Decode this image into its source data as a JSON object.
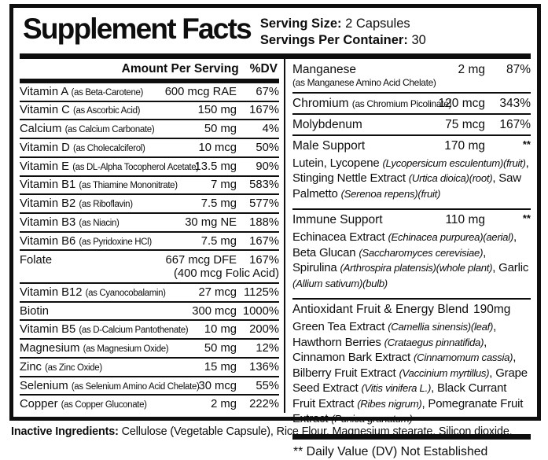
{
  "colors": {
    "ink": "#0e0e0e",
    "background": "#ffffff"
  },
  "title": "Supplement Facts",
  "serving": {
    "size_label": "Serving Size:",
    "size_value": "2 Capsules",
    "container_label": "Servings Per Container:",
    "container_value": "30"
  },
  "left_table": {
    "header": {
      "amount": "Amount Per Serving",
      "dv": "%DV"
    },
    "rows": [
      {
        "name": "Vitamin A",
        "form": "(as Beta-Carotene)",
        "amount": "600 mcg RAE",
        "dv": "67%"
      },
      {
        "name": "Vitamin C",
        "form": "(as Ascorbic Acid)",
        "amount": "150 mg",
        "dv": "167%"
      },
      {
        "name": "Calcium",
        "form": "(as Calcium Carbonate)",
        "amount": "50 mg",
        "dv": "4%"
      },
      {
        "name": "Vitamin D",
        "form": "(as Cholecalciferol)",
        "amount": "10 mcg",
        "dv": "50%"
      },
      {
        "name": "Vitamin E",
        "form": "(as DL-Alpha Tocopherol Acetate)",
        "amount": "13.5 mg",
        "dv": "90%"
      },
      {
        "name": "Vitamin B1",
        "form": "(as Thiamine Mononitrate)",
        "amount": "7 mg",
        "dv": "583%"
      },
      {
        "name": "Vitamin B2",
        "form": "(as Riboflavin)",
        "amount": "7.5 mg",
        "dv": "577%"
      },
      {
        "name": "Vitamin B3",
        "form": "(as Niacin)",
        "amount": "30 mg NE",
        "dv": "188%"
      },
      {
        "name": "Vitamin B6",
        "form": "(as Pyridoxine HCl)",
        "amount": "7.5 mg",
        "dv": "167%"
      },
      {
        "name": "Folate",
        "form": "",
        "amount": "667 mcg DFE",
        "dv": "167%",
        "amount2": "(400 mcg Folic Acid)"
      },
      {
        "name": "Vitamin B12",
        "form": "(as Cyanocobalamin)",
        "amount": "27 mcg",
        "dv": "1125%"
      },
      {
        "name": "Biotin",
        "form": "",
        "amount": "300 mcg",
        "dv": "1000%"
      },
      {
        "name": "Vitamin B5",
        "form": "(as D-Calcium Pantothenate)",
        "amount": "10 mg",
        "dv": "200%"
      },
      {
        "name": "Magnesium",
        "form": "(as Magnesium Oxide)",
        "amount": "50 mg",
        "dv": "12%"
      },
      {
        "name": "Zinc",
        "form": "(as Zinc Oxide)",
        "amount": "15 mg",
        "dv": "136%"
      },
      {
        "name": "Selenium",
        "form": "(as Selenium Amino Acid Chelate)",
        "amount": "30 mcg",
        "dv": "55%"
      },
      {
        "name": "Copper",
        "form": "(as Copper Gluconate)",
        "amount": "2 mg",
        "dv": "222%"
      }
    ]
  },
  "right_table": {
    "rows": [
      {
        "name": "Manganese",
        "form": "(as Manganese Amino Acid Chelate)",
        "form_below": true,
        "amount": "2 mg",
        "dv": "87%"
      },
      {
        "name": "Chromium",
        "form": "(as Chromium Picolinate)",
        "form_below": false,
        "amount": "120 mcg",
        "dv": "343%"
      },
      {
        "name": "Molybdenum",
        "form": "",
        "form_below": false,
        "amount": "75 mcg",
        "dv": "167%"
      }
    ],
    "sections": [
      {
        "name": "Male Support",
        "amount": "170 mg",
        "dv": "**",
        "amount_inline": false,
        "ingredients": [
          {
            "text": "Lutein, Lycopene ",
            "italic": false
          },
          {
            "text": "(Lycopersicum esculentum)(fruit)",
            "italic": true
          },
          {
            "text": ", Stinging Nettle Extract ",
            "italic": false
          },
          {
            "text": "(Urtica dioica)(root)",
            "italic": true
          },
          {
            "text": ", Saw Palmetto ",
            "italic": false
          },
          {
            "text": "(Serenoa repens)(fruit)",
            "italic": true
          }
        ]
      },
      {
        "name": "Immune Support",
        "amount": "110 mg",
        "dv": "**",
        "amount_inline": false,
        "ingredients": [
          {
            "text": "Echinacea Extract ",
            "italic": false
          },
          {
            "text": "(Echinacea purpurea)(aerial)",
            "italic": true
          },
          {
            "text": ", Beta Glucan ",
            "italic": false
          },
          {
            "text": "(Saccharomyces cerevisiae)",
            "italic": true
          },
          {
            "text": ", Spirulina ",
            "italic": false
          },
          {
            "text": "(Arthrospira platensis)(whole plant)",
            "italic": true
          },
          {
            "text": ", Garlic ",
            "italic": false
          },
          {
            "text": "(Allium sativum)(bulb)",
            "italic": true
          }
        ]
      },
      {
        "name": "Antioxidant Fruit & Energy Blend",
        "amount": "190mg",
        "dv": "**",
        "amount_inline": true,
        "ingredients": [
          {
            "text": "Green Tea Extract ",
            "italic": false
          },
          {
            "text": "(Camellia sinensis)(leaf)",
            "italic": true
          },
          {
            "text": ", Hawthorn Berries ",
            "italic": false
          },
          {
            "text": "(Crataegus pinnatifida)",
            "italic": true
          },
          {
            "text": ", Cinnamon Bark Extract ",
            "italic": false
          },
          {
            "text": "(Cinnamomum cassia)",
            "italic": true
          },
          {
            "text": ", Bilberry Fruit Extract ",
            "italic": false
          },
          {
            "text": "(Vaccinium myrtillus)",
            "italic": true
          },
          {
            "text": ", Grape Seed Extract ",
            "italic": false
          },
          {
            "text": "(Vitis vinifera L.)",
            "italic": true
          },
          {
            "text": ", Black Currant Fruit Extract ",
            "italic": false
          },
          {
            "text": "(Ribes nigrum)",
            "italic": true
          },
          {
            "text": ", Pomegranate Fruit Extract ",
            "italic": false
          },
          {
            "text": "(Punica granatum)",
            "italic": true
          }
        ]
      }
    ],
    "footnote": "** Daily Value (DV) Not Established"
  },
  "inactive": {
    "label": "Inactive Ingredients:",
    "text": " Cellulose (Vegetable Capsule), Rice Flour, Magnesium stearate, Silicon dioxide."
  }
}
